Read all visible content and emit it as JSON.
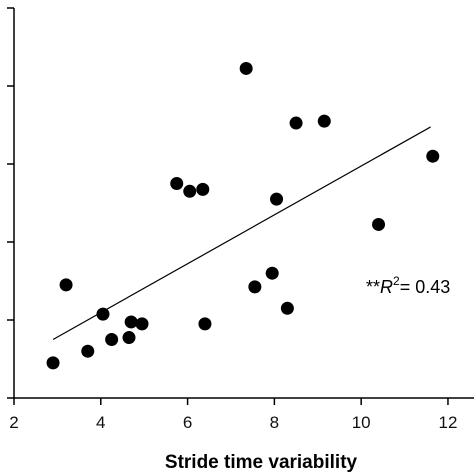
{
  "chart_data": {
    "type": "scatter",
    "title": "",
    "xlabel": "Stride time variability",
    "ylabel": "",
    "xlim": [
      2,
      12.6
    ],
    "ylim": [
      0,
      10
    ],
    "xticks": [
      2,
      4,
      6,
      8,
      10,
      12
    ],
    "yticks": [
      0,
      2,
      4,
      6,
      8,
      10
    ],
    "y_tick_labels_visible": false,
    "grid": false,
    "legend": "none",
    "points": [
      {
        "x": 2.9,
        "y": 0.9
      },
      {
        "x": 3.2,
        "y": 2.9
      },
      {
        "x": 3.7,
        "y": 1.2
      },
      {
        "x": 4.05,
        "y": 2.15
      },
      {
        "x": 4.25,
        "y": 1.5
      },
      {
        "x": 4.65,
        "y": 1.55
      },
      {
        "x": 4.7,
        "y": 1.95
      },
      {
        "x": 4.95,
        "y": 1.9
      },
      {
        "x": 5.75,
        "y": 5.5
      },
      {
        "x": 6.05,
        "y": 5.3
      },
      {
        "x": 6.35,
        "y": 5.35
      },
      {
        "x": 6.4,
        "y": 1.9
      },
      {
        "x": 7.35,
        "y": 8.45
      },
      {
        "x": 7.55,
        "y": 2.85
      },
      {
        "x": 7.95,
        "y": 3.2
      },
      {
        "x": 8.05,
        "y": 5.1
      },
      {
        "x": 8.3,
        "y": 2.3
      },
      {
        "x": 8.5,
        "y": 7.05
      },
      {
        "x": 9.15,
        "y": 7.1
      },
      {
        "x": 10.4,
        "y": 4.45
      },
      {
        "x": 11.65,
        "y": 6.2
      }
    ],
    "trendline": {
      "x": [
        2.9,
        11.6
      ],
      "y": [
        1.5,
        6.95
      ]
    },
    "annotation": {
      "prefix": "**",
      "var": "R",
      "sup": "2",
      "suffix": "= 0.43"
    },
    "colors": {
      "points": "#000000",
      "line": "#000000",
      "axes": "#000000"
    }
  }
}
